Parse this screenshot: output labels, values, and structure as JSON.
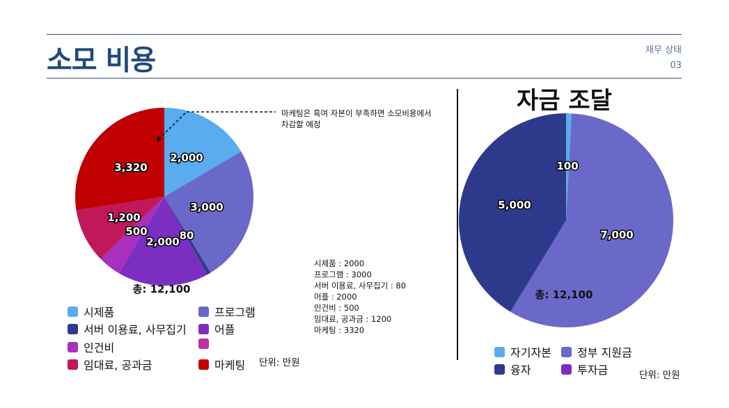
{
  "header": {
    "title": "소모 비용",
    "section": "재무 상태",
    "page": "03"
  },
  "annotation": {
    "line1": "마케팅은 흑여 자본이 부족하면 소모비용에서",
    "line2": "차감할 예정"
  },
  "summary_lines": [
    "시제품 : 2000",
    "프로그램 : 3000",
    "서버 이용료, 사무집기 : 80",
    "어플 : 2000",
    "인건비 : 500",
    "임대료, 공과금 : 1200",
    "마케팅 : 3320"
  ],
  "chart_data": [
    {
      "type": "pie",
      "title": "",
      "categories": [
        "시제품",
        "프로그램",
        "서버 이용료, 사무집기",
        "어플",
        "인건비",
        "",
        "임대료, 공과금",
        "마케팅"
      ],
      "values": [
        2000,
        3000,
        80,
        2000,
        500,
        0,
        1200,
        3320
      ],
      "data_labels": [
        "2,000",
        "3,000",
        "80",
        "2,000",
        "500",
        "",
        "1,200",
        "3,320"
      ],
      "colors": [
        "#5aacf0",
        "#6a68c8",
        "#2d3a8c",
        "#7b2fc0",
        "#a82fc0",
        "#c02fa8",
        "#c0185a",
        "#c00000"
      ],
      "total_label": "총: 12,100",
      "legend_columns": 2,
      "legend_placement": "bottom",
      "unit_label": "단위: 만원"
    },
    {
      "type": "pie",
      "title": "자금 조달",
      "categories": [
        "자기자본",
        "정부 지원금",
        "융자",
        "투자금"
      ],
      "values": [
        100,
        7000,
        5000,
        0
      ],
      "data_labels": [
        "100",
        "7,000",
        "5,000",
        ""
      ],
      "colors": [
        "#5aacf0",
        "#6a68c8",
        "#2d3a8c",
        "#7b2fc0"
      ],
      "total_label": "총: 12,100",
      "legend_columns": 2,
      "legend_placement": "bottom",
      "unit_label": "단위: 만원"
    }
  ]
}
